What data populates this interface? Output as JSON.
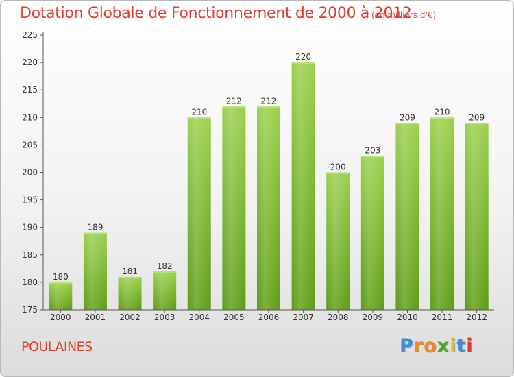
{
  "header": {
    "title": "Dotation Globale de Fonctionnement de 2000 à 2012",
    "unit": "(en milliers d'€)"
  },
  "footer": {
    "commune": "POULAINES",
    "logo_letters": [
      "P",
      "r",
      "o",
      "x",
      "i",
      "t",
      "i"
    ],
    "logo_colors": [
      "#3a8fd6",
      "#f08a1c",
      "#f08a1c",
      "#4aa82c",
      "#e8c21a",
      "#3a8fd6",
      "#d93a2a"
    ]
  },
  "chart_data": {
    "type": "bar",
    "title": "Dotation Globale de Fonctionnement de 2000 à 2012",
    "subtitle": "(en milliers d'€)",
    "xlabel": "",
    "ylabel": "",
    "categories": [
      "2000",
      "2001",
      "2002",
      "2003",
      "2004",
      "2005",
      "2006",
      "2007",
      "2008",
      "2009",
      "2010",
      "2011",
      "2012"
    ],
    "values": [
      180,
      189,
      181,
      182,
      210,
      212,
      212,
      220,
      200,
      203,
      209,
      210,
      209
    ],
    "ylim": [
      175,
      225
    ],
    "yticks": [
      175,
      180,
      185,
      190,
      195,
      200,
      205,
      210,
      215,
      220,
      225
    ],
    "grid": false,
    "bar_color": "#7ab82e"
  }
}
